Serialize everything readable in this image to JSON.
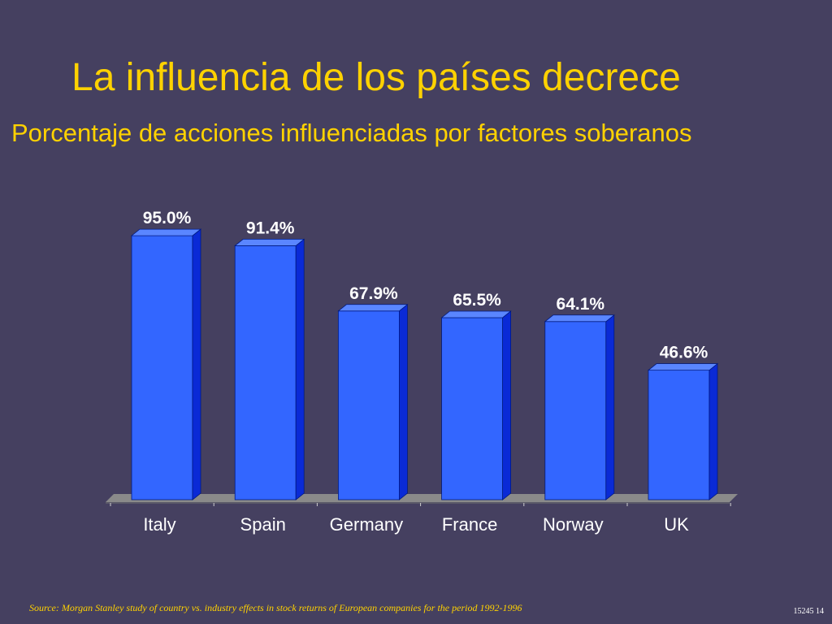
{
  "slide": {
    "title": "La influencia de los países decrece",
    "subtitle": "Porcentaje de acciones influenciadas por factores soberanos",
    "source": "Source: Morgan Stanley study of country vs. industry effects in stock returns of European companies for the period 1992-1996",
    "slide_number": "15245 14"
  },
  "colors": {
    "background": "#454060",
    "title": "#ffd200",
    "bar_front": "#3366ff",
    "bar_side": "#0a2ad6",
    "bar_top": "#5a86ff",
    "floor": "#8a8a8a",
    "labels": "#ffffff"
  },
  "chart_data": {
    "type": "bar",
    "title": "",
    "xlabel": "",
    "ylabel": "",
    "categories": [
      "Italy",
      "Spain",
      "Germany",
      "France",
      "Norway",
      "UK"
    ],
    "values": [
      95.0,
      91.4,
      67.9,
      65.5,
      64.1,
      46.6
    ],
    "value_labels": [
      "95.0%",
      "91.4%",
      "67.9%",
      "65.5%",
      "64.1%",
      "46.6%"
    ],
    "ylim": [
      0,
      100
    ],
    "grid": false,
    "legend": "none",
    "style": "3d"
  }
}
